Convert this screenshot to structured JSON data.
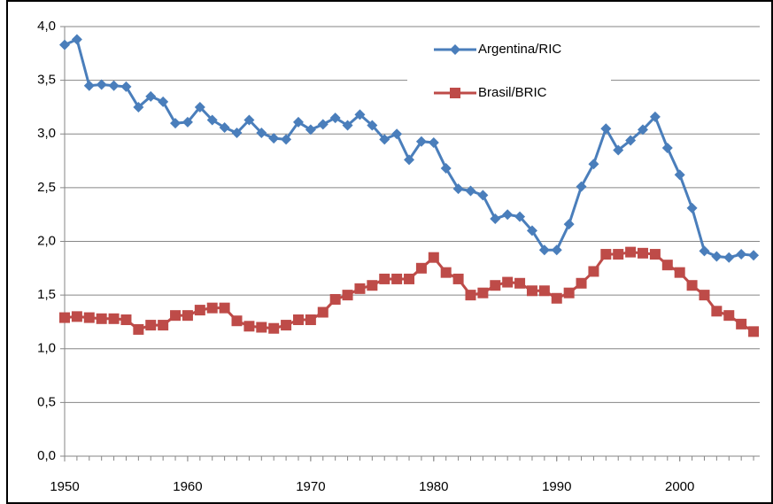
{
  "chart_data": {
    "type": "line",
    "x": [
      1950,
      1951,
      1952,
      1953,
      1954,
      1955,
      1956,
      1957,
      1958,
      1959,
      1960,
      1961,
      1962,
      1963,
      1964,
      1965,
      1966,
      1967,
      1968,
      1969,
      1970,
      1971,
      1972,
      1973,
      1974,
      1975,
      1976,
      1977,
      1978,
      1979,
      1980,
      1981,
      1982,
      1983,
      1984,
      1985,
      1986,
      1987,
      1988,
      1989,
      1990,
      1991,
      1992,
      1993,
      1994,
      1995,
      1996,
      1997,
      1998,
      1999,
      2000,
      2001,
      2002,
      2003,
      2004,
      2005,
      2006
    ],
    "series": [
      {
        "name": "Argentina/RIC",
        "color": "#4a7ebb",
        "marker": "diamond",
        "values": [
          3.83,
          3.88,
          3.45,
          3.46,
          3.45,
          3.44,
          3.25,
          3.35,
          3.3,
          3.1,
          3.11,
          3.25,
          3.13,
          3.06,
          3.01,
          3.13,
          3.01,
          2.96,
          2.95,
          3.11,
          3.04,
          3.09,
          3.15,
          3.08,
          3.18,
          3.08,
          2.95,
          3.0,
          2.76,
          2.93,
          2.92,
          2.68,
          2.49,
          2.47,
          2.43,
          2.21,
          2.25,
          2.23,
          2.1,
          1.92,
          1.92,
          2.16,
          2.51,
          2.72,
          3.05,
          2.85,
          2.94,
          3.04,
          3.16,
          2.87,
          2.62,
          2.31,
          1.91,
          1.86,
          1.85,
          1.88,
          1.87
        ]
      },
      {
        "name": "Brasil/BRIC",
        "color": "#be4b48",
        "marker": "square",
        "values": [
          1.29,
          1.3,
          1.29,
          1.28,
          1.28,
          1.27,
          1.18,
          1.22,
          1.22,
          1.31,
          1.31,
          1.36,
          1.38,
          1.38,
          1.26,
          1.21,
          1.2,
          1.19,
          1.22,
          1.27,
          1.27,
          1.34,
          1.46,
          1.5,
          1.56,
          1.59,
          1.65,
          1.65,
          1.65,
          1.75,
          1.85,
          1.71,
          1.65,
          1.5,
          1.52,
          1.59,
          1.62,
          1.61,
          1.54,
          1.54,
          1.47,
          1.52,
          1.61,
          1.72,
          1.88,
          1.88,
          1.9,
          1.89,
          1.88,
          1.78,
          1.71,
          1.59,
          1.5,
          1.35,
          1.31,
          1.23,
          1.16
        ]
      }
    ],
    "xlim": [
      1950,
      2006.5
    ],
    "xticks": [
      1950,
      1960,
      1970,
      1980,
      1990,
      2000
    ],
    "ylim": [
      0,
      4
    ],
    "yticks": [
      {
        "value": 0,
        "label": "0,0"
      },
      {
        "value": 0.5,
        "label": "0,5"
      },
      {
        "value": 1,
        "label": "1,0"
      },
      {
        "value": 1.5,
        "label": "1,5"
      },
      {
        "value": 2,
        "label": "2,0"
      },
      {
        "value": 2.5,
        "label": "2,5"
      },
      {
        "value": 3,
        "label": "3,0"
      },
      {
        "value": 3.5,
        "label": "3,5"
      },
      {
        "value": 4,
        "label": "4,0"
      }
    ],
    "grid": true,
    "legend": "upper right"
  }
}
